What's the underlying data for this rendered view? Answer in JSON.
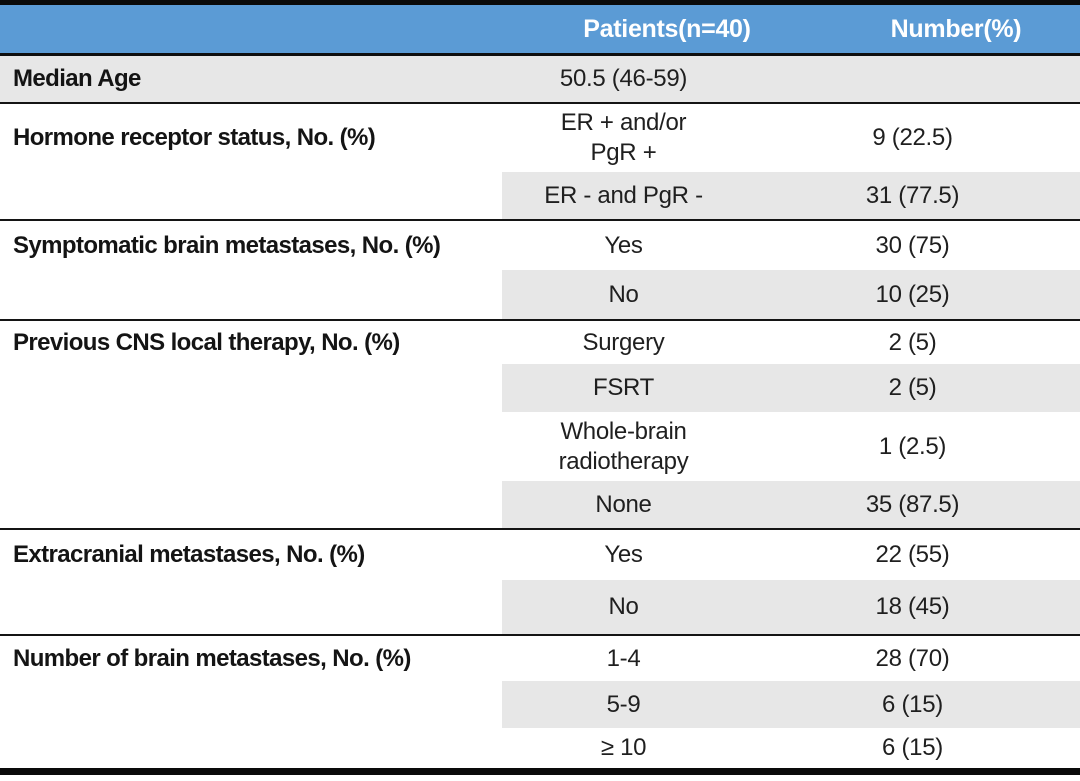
{
  "table": {
    "colors": {
      "header_bg": "#5B9BD5",
      "header_text": "#FFFFFF",
      "band_bg": "#E7E7E7",
      "border": "#0A0A0A",
      "body_text": "#1F1F1F"
    },
    "header": {
      "patients_label": "Patients(n=40)",
      "number_label": "Number(%)"
    },
    "sections": [
      {
        "label": "Median Age",
        "rows": [
          {
            "value": "50.5 (46-59)",
            "number": "",
            "shaded": true,
            "fullband": true
          }
        ]
      },
      {
        "label": "Hormone receptor status, No. (%)",
        "rows": [
          {
            "value": "ER + and/or\nPgR +",
            "number": "9 (22.5)",
            "shaded": false
          },
          {
            "value": "ER - and PgR -",
            "number": "31 (77.5)",
            "shaded": true
          }
        ]
      },
      {
        "label": "Symptomatic brain metastases, No. (%)",
        "rows": [
          {
            "value": "Yes",
            "number": "30 (75)",
            "shaded": false
          },
          {
            "value": "No",
            "number": "10 (25)",
            "shaded": true
          }
        ]
      },
      {
        "label": "Previous CNS local therapy, No. (%)",
        "rows": [
          {
            "value": "Surgery",
            "number": "2 (5)",
            "shaded": false
          },
          {
            "value": "FSRT",
            "number": "2 (5)",
            "shaded": true
          },
          {
            "value": "Whole-brain\nradiotherapy",
            "number": "1 (2.5)",
            "shaded": false
          },
          {
            "value": "None",
            "number": "35 (87.5)",
            "shaded": true
          }
        ]
      },
      {
        "label": "Extracranial metastases, No. (%)",
        "rows": [
          {
            "value": "Yes",
            "number": "22 (55)",
            "shaded": false
          },
          {
            "value": "No",
            "number": "18 (45)",
            "shaded": true
          }
        ]
      },
      {
        "label": "Number of brain metastases, No. (%)",
        "rows": [
          {
            "value": "1-4",
            "number": "28 (70)",
            "shaded": false
          },
          {
            "value": "5-9",
            "number": "6 (15)",
            "shaded": true
          },
          {
            "value": "≥ 10",
            "number": "6 (15)",
            "shaded": false
          }
        ]
      }
    ]
  }
}
